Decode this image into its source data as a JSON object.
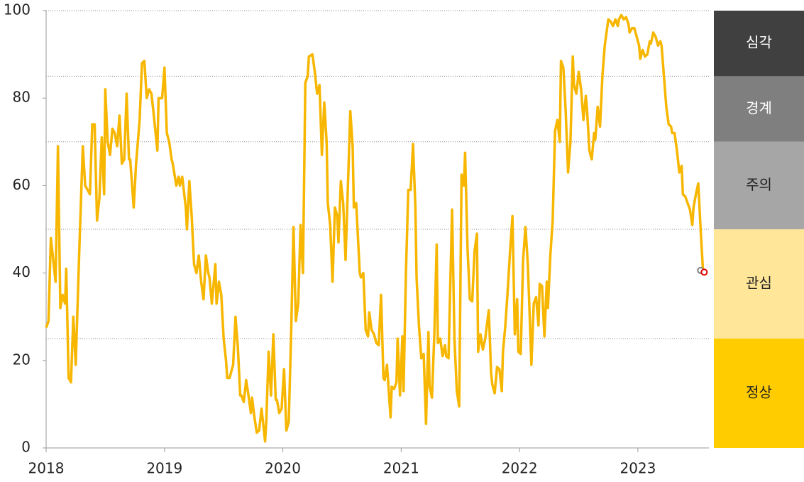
{
  "chart_data": {
    "type": "line",
    "color": "#f7b600",
    "xlim": [
      2018,
      2023.6
    ],
    "xticks": [
      2018,
      2019,
      2020,
      2021,
      2022,
      2023
    ],
    "ylim": [
      0,
      100
    ],
    "yticks": [
      0,
      20,
      40,
      60,
      80,
      100
    ],
    "x": [
      2018.0,
      2018.02,
      2018.04,
      2018.08,
      2018.1,
      2018.12,
      2018.14,
      2018.16,
      2018.17,
      2018.19,
      2018.21,
      2018.23,
      2018.25,
      2018.28,
      2018.31,
      2018.33,
      2018.37,
      2018.39,
      2018.41,
      2018.43,
      2018.45,
      2018.47,
      2018.49,
      2018.5,
      2018.52,
      2018.54,
      2018.56,
      2018.58,
      2018.6,
      2018.62,
      2018.64,
      2018.66,
      2018.68,
      2018.7,
      2018.71,
      2018.74,
      2018.76,
      2018.79,
      2018.81,
      2018.83,
      2018.85,
      2018.87,
      2018.89,
      2018.91,
      2018.94,
      2018.95,
      2018.98,
      2019.0,
      2019.02,
      2019.04,
      2019.06,
      2019.07,
      2019.1,
      2019.12,
      2019.13,
      2019.15,
      2019.18,
      2019.19,
      2019.21,
      2019.23,
      2019.25,
      2019.27,
      2019.29,
      2019.31,
      2019.33,
      2019.35,
      2019.37,
      2019.38,
      2019.4,
      2019.43,
      2019.44,
      2019.46,
      2019.48,
      2019.5,
      2019.52,
      2019.53,
      2019.55,
      2019.58,
      2019.6,
      2019.62,
      2019.64,
      2019.65,
      2019.67,
      2019.69,
      2019.71,
      2019.73,
      2019.74,
      2019.76,
      2019.78,
      2019.8,
      2019.82,
      2019.85,
      2019.86,
      2019.88,
      2019.9,
      2019.92,
      2019.94,
      2019.95,
      2019.97,
      2019.99,
      2020.01,
      2020.03,
      2020.05,
      2020.07,
      2020.09,
      2020.11,
      2020.13,
      2020.15,
      2020.17,
      2020.19,
      2020.21,
      2020.22,
      2020.25,
      2020.27,
      2020.29,
      2020.31,
      2020.33,
      2020.35,
      2020.37,
      2020.38,
      2020.4,
      2020.42,
      2020.44,
      2020.46,
      2020.47,
      2020.49,
      2020.51,
      2020.53,
      2020.55,
      2020.57,
      2020.59,
      2020.6,
      2020.62,
      2020.65,
      2020.66,
      2020.68,
      2020.7,
      2020.72,
      2020.73,
      2020.75,
      2020.77,
      2020.79,
      2020.81,
      2020.83,
      2020.85,
      2020.86,
      2020.88,
      2020.91,
      2020.92,
      2020.94,
      2020.96,
      2020.97,
      2020.99,
      2021.01,
      2021.02,
      2021.04,
      2021.06,
      2021.08,
      2021.1,
      2021.12,
      2021.13,
      2021.15,
      2021.17,
      2021.19,
      2021.21,
      2021.23,
      2021.24,
      2021.26,
      2021.28,
      2021.3,
      2021.31,
      2021.33,
      2021.35,
      2021.37,
      2021.38,
      2021.4,
      2021.43,
      2021.45,
      2021.47,
      2021.49,
      2021.51,
      2021.53,
      2021.54,
      2021.56,
      2021.58,
      2021.6,
      2021.62,
      2021.64,
      2021.65,
      2021.67,
      2021.69,
      2021.71,
      2021.74,
      2021.76,
      2021.77,
      2021.79,
      2021.81,
      2021.83,
      2021.85,
      2021.86,
      2021.88,
      2021.9,
      2021.92,
      2021.94,
      2021.96,
      2021.98,
      2021.99,
      2022.01,
      2022.03,
      2022.05,
      2022.07,
      2022.09,
      2022.1,
      2022.12,
      2022.14,
      2022.16,
      2022.17,
      2022.19,
      2022.21,
      2022.23,
      2022.24,
      2022.26,
      2022.28,
      2022.3,
      2022.32,
      2022.34,
      2022.35,
      2022.37,
      2022.39,
      2022.41,
      2022.43,
      2022.45,
      2022.46,
      2022.48,
      2022.5,
      2022.52,
      2022.54,
      2022.56,
      2022.57,
      2022.59,
      2022.61,
      2022.63,
      2022.64,
      2022.66,
      2022.68,
      2022.7,
      2022.72,
      2022.74,
      2022.75,
      2022.77,
      2022.79,
      2022.81,
      2022.83,
      2022.84,
      2022.86,
      2022.88,
      2022.9,
      2022.92,
      2022.93,
      2022.95,
      2022.97,
      2022.99,
      2023.01,
      2023.02,
      2023.04,
      2023.06,
      2023.08,
      2023.1,
      2023.11,
      2023.13,
      2023.15,
      2023.17,
      2023.19,
      2023.2,
      2023.22,
      2023.24,
      2023.26,
      2023.28,
      2023.29,
      2023.31,
      2023.33,
      2023.35,
      2023.37,
      2023.38,
      2023.4,
      2023.42,
      2023.44,
      2023.46,
      2023.47,
      2023.49,
      2023.51,
      2023.53,
      2023.55
    ],
    "values": [
      27.5,
      29,
      48,
      38,
      69,
      32,
      35,
      33,
      41,
      16,
      15,
      30,
      19,
      45,
      69,
      60,
      58,
      74,
      74,
      52,
      57,
      71,
      58,
      82,
      70,
      67,
      73,
      72,
      69,
      76,
      65,
      66,
      81,
      66,
      66,
      55,
      65,
      75,
      88,
      88.5,
      80,
      82,
      81,
      76,
      68,
      80,
      80,
      87,
      72,
      70,
      66,
      65,
      60,
      62,
      60,
      62,
      55,
      50,
      61,
      53,
      42,
      40,
      44,
      38,
      34,
      44,
      40,
      39,
      33,
      42,
      33,
      38,
      35,
      25,
      20,
      16,
      16,
      19,
      30,
      23,
      12,
      12,
      10.5,
      15.5,
      12,
      8,
      11.5,
      7,
      3.5,
      4,
      9,
      1.5,
      6,
      22,
      12,
      26,
      11,
      11,
      8,
      9,
      18,
      4,
      6,
      26,
      50.5,
      29,
      33,
      51,
      40,
      83.5,
      85,
      89.5,
      90,
      86,
      81,
      83,
      67,
      79,
      70,
      56,
      51,
      38,
      55,
      53,
      47,
      61,
      56,
      43,
      60,
      77,
      69,
      55,
      56,
      40,
      39,
      40,
      27,
      25.5,
      31,
      27,
      26,
      24,
      23.5,
      35,
      16,
      15.5,
      19,
      7,
      14,
      13.5,
      15,
      25,
      12,
      25.5,
      13,
      40,
      59,
      59,
      69.5,
      55,
      39,
      28,
      20.5,
      21.5,
      5.5,
      26.5,
      14,
      11.5,
      26,
      46.5,
      24,
      25,
      21,
      23.5,
      21,
      20.5,
      54.5,
      25,
      13,
      9.5,
      62.5,
      60,
      67.5,
      46,
      34,
      33.5,
      45,
      49,
      22,
      26,
      22.5,
      25,
      31.5,
      17,
      14.5,
      12.5,
      18.5,
      18,
      13,
      22,
      28,
      36,
      45,
      53,
      26,
      34,
      22,
      21.5,
      43,
      50.5,
      42,
      27,
      19,
      33,
      34.5,
      28,
      37.5,
      37,
      25.5,
      38,
      32,
      44,
      52,
      72.5,
      75,
      70,
      88.5,
      87,
      77,
      63,
      70,
      89.5,
      83,
      81,
      86,
      82,
      75,
      80.5,
      77.5,
      68,
      66,
      72,
      70.5,
      78,
      73.5,
      85,
      92,
      96,
      98,
      97.5,
      96.5,
      98,
      96.5,
      98,
      99,
      98,
      98.5,
      97,
      95,
      96,
      96,
      94,
      92,
      89,
      91,
      89.5,
      90,
      93,
      92.5,
      95,
      94,
      92,
      93,
      92,
      85,
      78,
      74,
      73.5,
      72,
      72,
      68,
      63,
      64.5,
      58,
      57.5,
      56,
      54.5,
      51,
      55,
      58,
      60.5,
      50,
      40.5
    ],
    "markers": [
      {
        "x": 2023.53,
        "value": 40.6,
        "color": "#7f7f7f"
      },
      {
        "x": 2023.56,
        "value": 40.2,
        "color": "#e00000"
      }
    ],
    "zones": [
      {
        "label": "심각",
        "from": 85,
        "to": 100,
        "color": "#404040",
        "text_color": "#ffffff"
      },
      {
        "label": "경계",
        "from": 70,
        "to": 85,
        "color": "#7f7f7f",
        "text_color": "#ffffff"
      },
      {
        "label": "주의",
        "from": 50,
        "to": 70,
        "color": "#a6a6a6",
        "text_color": "#222222"
      },
      {
        "label": "관심",
        "from": 25,
        "to": 50,
        "color": "#ffe699",
        "text_color": "#222222"
      },
      {
        "label": "정상",
        "from": 0,
        "to": 25,
        "color": "#ffcc00",
        "text_color": "#222222"
      }
    ]
  }
}
